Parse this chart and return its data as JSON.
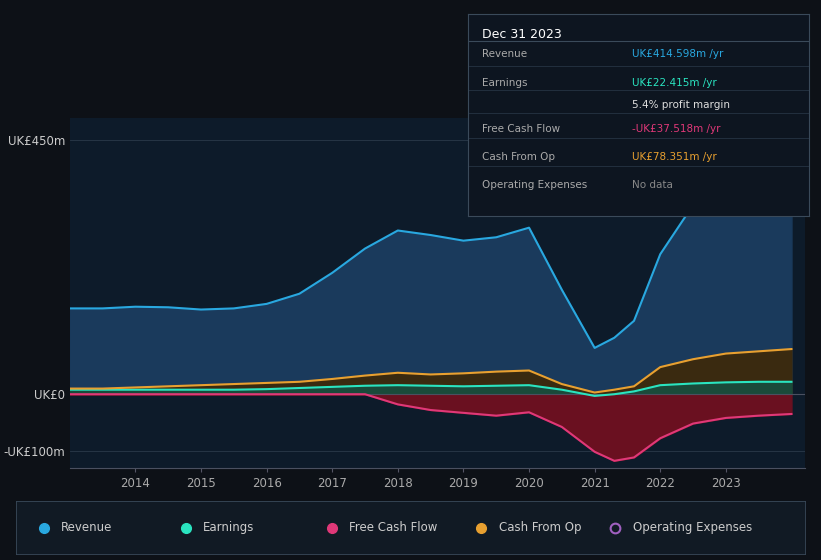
{
  "background_color": "#0d1117",
  "plot_bg_color": "#0d1b2a",
  "years": [
    2013.0,
    2013.5,
    2014.0,
    2014.5,
    2015.0,
    2015.5,
    2016.0,
    2016.5,
    2017.0,
    2017.5,
    2018.0,
    2018.5,
    2019.0,
    2019.5,
    2020.0,
    2020.5,
    2021.0,
    2021.3,
    2021.6,
    2022.0,
    2022.5,
    2023.0,
    2023.5,
    2024.0
  ],
  "revenue": [
    152,
    152,
    155,
    154,
    150,
    152,
    160,
    178,
    215,
    258,
    290,
    282,
    272,
    278,
    295,
    185,
    82,
    100,
    130,
    248,
    335,
    385,
    415,
    445
  ],
  "earnings": [
    8,
    8,
    8,
    8,
    8,
    8,
    9,
    11,
    13,
    15,
    16,
    15,
    14,
    15,
    16,
    8,
    -3,
    0,
    5,
    16,
    19,
    21,
    22,
    22
  ],
  "free_cash_flow": [
    0,
    0,
    0,
    0,
    0,
    0,
    0,
    0,
    0,
    0,
    -18,
    -28,
    -33,
    -38,
    -32,
    -58,
    -102,
    -118,
    -112,
    -78,
    -52,
    -42,
    -38,
    -35
  ],
  "cash_from_op": [
    10,
    10,
    12,
    14,
    16,
    18,
    20,
    22,
    27,
    33,
    38,
    35,
    37,
    40,
    42,
    18,
    3,
    8,
    14,
    48,
    62,
    72,
    76,
    80
  ],
  "revenue_color": "#29a8e0",
  "earnings_color": "#2ae4c0",
  "free_cash_flow_color": "#e03878",
  "cash_from_op_color": "#e8a030",
  "op_expenses_color": "#a060c0",
  "revenue_fill_color": "#1a3a5c",
  "earnings_fill_color": "#1a4a3a",
  "free_cash_flow_fill_color": "#6a1020",
  "cash_from_op_fill_color": "#3a2a10",
  "ylim": [
    -130,
    490
  ],
  "ytick_vals": [
    -100,
    0,
    450
  ],
  "ytick_labels": [
    "-UK£100m",
    "UK£0",
    "UK£450m"
  ],
  "xtick_vals": [
    2014,
    2015,
    2016,
    2017,
    2018,
    2019,
    2020,
    2021,
    2022,
    2023
  ],
  "xlim": [
    2013.0,
    2024.2
  ],
  "info_box": {
    "title": "Dec 31 2023",
    "rows": [
      {
        "label": "Revenue",
        "value": "UK£414.598m /yr",
        "value_color": "#29a8e0"
      },
      {
        "label": "Earnings",
        "value": "UK£22.415m /yr",
        "value_color": "#2ae4c0"
      },
      {
        "label": "",
        "value": "5.4% profit margin",
        "value_color": "#dddddd"
      },
      {
        "label": "Free Cash Flow",
        "value": "-UK£37.518m /yr",
        "value_color": "#e03878"
      },
      {
        "label": "Cash From Op",
        "value": "UK£78.351m /yr",
        "value_color": "#e8a030"
      },
      {
        "label": "Operating Expenses",
        "value": "No data",
        "value_color": "#888888"
      }
    ]
  },
  "legend_items": [
    {
      "label": "Revenue",
      "color": "#29a8e0",
      "filled": true
    },
    {
      "label": "Earnings",
      "color": "#2ae4c0",
      "filled": true
    },
    {
      "label": "Free Cash Flow",
      "color": "#e03878",
      "filled": true
    },
    {
      "label": "Cash From Op",
      "color": "#e8a030",
      "filled": true
    },
    {
      "label": "Operating Expenses",
      "color": "#a060c0",
      "filled": false
    }
  ]
}
